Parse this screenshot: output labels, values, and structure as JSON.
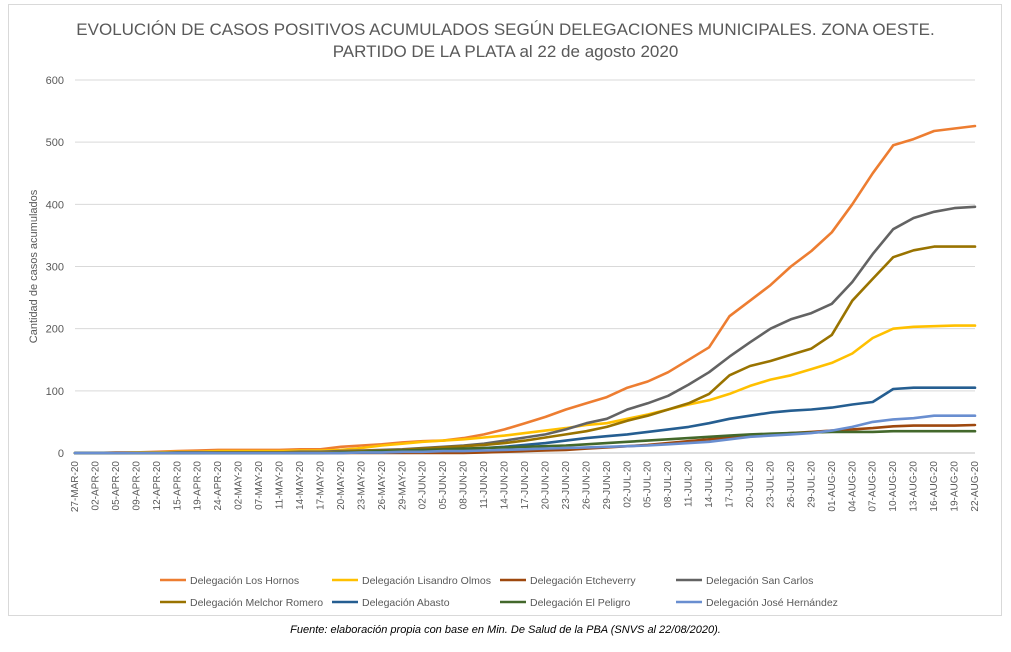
{
  "chart_data": {
    "type": "line",
    "title": "EVOLUCIÓN DE CASOS POSITIVOS ACUMULADOS SEGÚN DELEGACIONES MUNICIPALES. ZONA OESTE.",
    "subtitle": "PARTIDO DE LA PLATA al 22 de agosto 2020",
    "ylabel": "Cantidad de casos acumulados",
    "xlabel": "",
    "ylim": [
      0,
      600
    ],
    "yticks": [
      "0",
      "100",
      "200",
      "300",
      "400",
      "500",
      "600"
    ],
    "xticks": [
      "27-MAR-20",
      "02-APR-20",
      "05-APR-20",
      "09-APR-20",
      "12-APR-20",
      "15-APR-20",
      "19-APR-20",
      "24-APR-20",
      "02-MAY-20",
      "07-MAY-20",
      "11-MAY-20",
      "14-MAY-20",
      "17-MAY-20",
      "20-MAY-20",
      "23-MAY-20",
      "26-MAY-20",
      "29-MAY-20",
      "02-JUN-20",
      "05-JUN-20",
      "08-JUN-20",
      "11-JUN-20",
      "14-JUN-20",
      "17-JUN-20",
      "20-JUN-20",
      "23-JUN-20",
      "26-JUN-20",
      "29-JUN-20",
      "02-JUL-20",
      "05-JUL-20",
      "08-JUL-20",
      "11-JUL-20",
      "14-JUL-20",
      "17-JUL-20",
      "20-JUL-20",
      "23-JUL-20",
      "26-JUL-20",
      "29-JUL-20",
      "01-AUG-20",
      "04-AUG-20",
      "07-AUG-20",
      "10-AUG-20",
      "13-AUG-20",
      "16-AUG-20",
      "19-AUG-20",
      "22-AUG-20"
    ],
    "grid": true,
    "legend_position": "bottom",
    "series": [
      {
        "name": "Delegación Los Hornos",
        "color": "#ed7d31",
        "values": [
          0,
          0,
          1,
          1,
          2,
          3,
          4,
          5,
          5,
          5,
          5,
          6,
          6,
          10,
          12,
          14,
          17,
          19,
          20,
          24,
          30,
          38,
          48,
          58,
          70,
          80,
          90,
          105,
          115,
          130,
          150,
          170,
          220,
          245,
          270,
          300,
          325,
          355,
          400,
          450,
          495,
          505,
          518,
          522,
          526
        ]
      },
      {
        "name": "Delegación Lisandro Olmos",
        "color": "#ffc000",
        "values": [
          0,
          0,
          0,
          1,
          1,
          2,
          2,
          3,
          3,
          3,
          3,
          4,
          4,
          5,
          8,
          12,
          15,
          18,
          20,
          22,
          25,
          28,
          32,
          36,
          40,
          45,
          48,
          55,
          62,
          70,
          78,
          85,
          95,
          108,
          118,
          125,
          135,
          145,
          160,
          185,
          200,
          203,
          204,
          205,
          205
        ]
      },
      {
        "name": "Delegación Etcheverry",
        "color": "#9e480e",
        "values": [
          0,
          0,
          0,
          0,
          0,
          0,
          0,
          0,
          0,
          0,
          0,
          0,
          0,
          0,
          0,
          0,
          0,
          0,
          0,
          0,
          1,
          2,
          3,
          4,
          5,
          7,
          9,
          11,
          13,
          16,
          19,
          22,
          25,
          28,
          30,
          32,
          34,
          36,
          38,
          40,
          43,
          44,
          44,
          44,
          45
        ]
      },
      {
        "name": "Delegación San Carlos",
        "color": "#636363",
        "values": [
          0,
          0,
          0,
          0,
          0,
          1,
          1,
          1,
          1,
          1,
          1,
          2,
          2,
          3,
          4,
          5,
          6,
          8,
          10,
          12,
          15,
          20,
          25,
          30,
          38,
          48,
          55,
          70,
          80,
          92,
          110,
          130,
          155,
          178,
          200,
          215,
          225,
          240,
          275,
          320,
          360,
          378,
          388,
          394,
          396
        ]
      },
      {
        "name": "Delegación Melchor Romero",
        "color": "#997300",
        "values": [
          0,
          0,
          0,
          0,
          0,
          0,
          0,
          1,
          1,
          1,
          1,
          1,
          1,
          2,
          3,
          4,
          5,
          7,
          9,
          11,
          13,
          16,
          20,
          25,
          30,
          35,
          42,
          52,
          60,
          70,
          80,
          95,
          125,
          140,
          148,
          158,
          168,
          190,
          245,
          280,
          315,
          326,
          332,
          332,
          332
        ]
      },
      {
        "name": "Delegación Abasto",
        "color": "#255e91",
        "values": [
          0,
          0,
          0,
          0,
          0,
          0,
          0,
          0,
          0,
          0,
          0,
          0,
          0,
          0,
          1,
          1,
          2,
          3,
          4,
          6,
          8,
          10,
          13,
          16,
          20,
          24,
          27,
          30,
          34,
          38,
          42,
          48,
          55,
          60,
          65,
          68,
          70,
          73,
          78,
          82,
          103,
          105,
          105,
          105,
          105
        ]
      },
      {
        "name": "Delegación El Peligro",
        "color": "#43682b",
        "values": [
          0,
          0,
          0,
          0,
          0,
          0,
          0,
          0,
          0,
          0,
          0,
          0,
          0,
          1,
          2,
          3,
          4,
          5,
          6,
          7,
          8,
          9,
          10,
          11,
          12,
          14,
          16,
          18,
          20,
          22,
          24,
          26,
          28,
          30,
          31,
          32,
          33,
          34,
          34,
          34,
          35,
          35,
          35,
          35,
          35
        ]
      },
      {
        "name": "Delegación José Hernández",
        "color": "#698ed0",
        "values": [
          0,
          0,
          0,
          0,
          0,
          0,
          0,
          0,
          0,
          0,
          0,
          0,
          0,
          0,
          1,
          1,
          2,
          2,
          3,
          3,
          4,
          5,
          6,
          7,
          8,
          9,
          10,
          11,
          12,
          14,
          16,
          18,
          22,
          26,
          28,
          30,
          32,
          36,
          42,
          50,
          54,
          56,
          60,
          60,
          60
        ]
      }
    ]
  },
  "source_note": "Fuente: elaboración propia con base en Min. De Salud de la PBA (SNVS al 22/08/2020)."
}
